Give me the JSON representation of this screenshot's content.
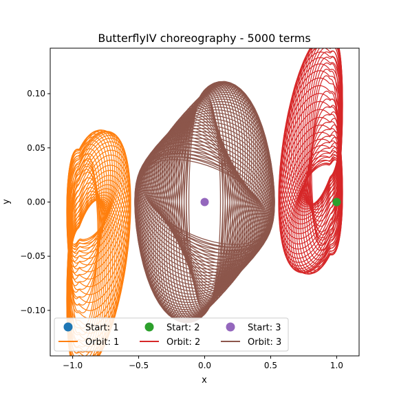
{
  "chart_data": {
    "type": "line",
    "title": "ButterflyIV choreography - 5000 terms",
    "xlabel": "x",
    "ylabel": "y",
    "xlim": [
      -1.17,
      1.17
    ],
    "ylim": [
      -0.142,
      0.142
    ],
    "xticks": [
      -1.0,
      -0.5,
      0.0,
      0.5,
      1.0
    ],
    "xtick_labels": [
      "−1.0",
      "−0.5",
      "0.0",
      "0.5",
      "1.0"
    ],
    "yticks": [
      -0.1,
      -0.05,
      0.0,
      0.05,
      0.1
    ],
    "ytick_labels": [
      "−0.10",
      "−0.05",
      "0.00",
      "0.05",
      "0.10"
    ],
    "grid": false,
    "legend_placement": "lower-left, 3 columns",
    "starts": [
      {
        "name": "Start: 1",
        "x": 1.0,
        "y": 0.0,
        "color": "#1f77b4"
      },
      {
        "name": "Start: 2",
        "x": 1.0,
        "y": 0.0,
        "color": "#2ca02c"
      },
      {
        "name": "Start: 3",
        "x": 0.0,
        "y": 0.0,
        "color": "#9467bd"
      }
    ],
    "orbits": [
      {
        "name": "Orbit: 1",
        "color": "#ff7f0e",
        "center_x": -0.85,
        "center_y": -0.03,
        "x_range": [
          -1.05,
          -0.5
        ],
        "y_range": [
          -0.128,
          0.056
        ],
        "orientation": "mirrored"
      },
      {
        "name": "Orbit: 2",
        "color": "#d62728",
        "center_x": 0.85,
        "center_y": 0.03,
        "x_range": [
          0.5,
          1.05
        ],
        "y_range": [
          -0.056,
          0.128
        ],
        "orientation": "normal"
      },
      {
        "name": "Orbit: 3",
        "color": "#8c564b",
        "center_x": 0.0,
        "center_y": 0.0,
        "x_range": [
          -0.52,
          0.52
        ],
        "y_range": [
          -0.11,
          0.11
        ],
        "orientation": "rotating ellipse"
      }
    ],
    "legend": [
      {
        "label": "Start: 1",
        "kind": "marker",
        "color": "#1f77b4"
      },
      {
        "label": "Start: 2",
        "kind": "marker",
        "color": "#2ca02c"
      },
      {
        "label": "Start: 3",
        "kind": "marker",
        "color": "#9467bd"
      },
      {
        "label": "Orbit: 1",
        "kind": "line",
        "color": "#ff7f0e"
      },
      {
        "label": "Orbit: 2",
        "kind": "line",
        "color": "#d62728"
      },
      {
        "label": "Orbit: 3",
        "kind": "line",
        "color": "#8c564b"
      }
    ]
  }
}
